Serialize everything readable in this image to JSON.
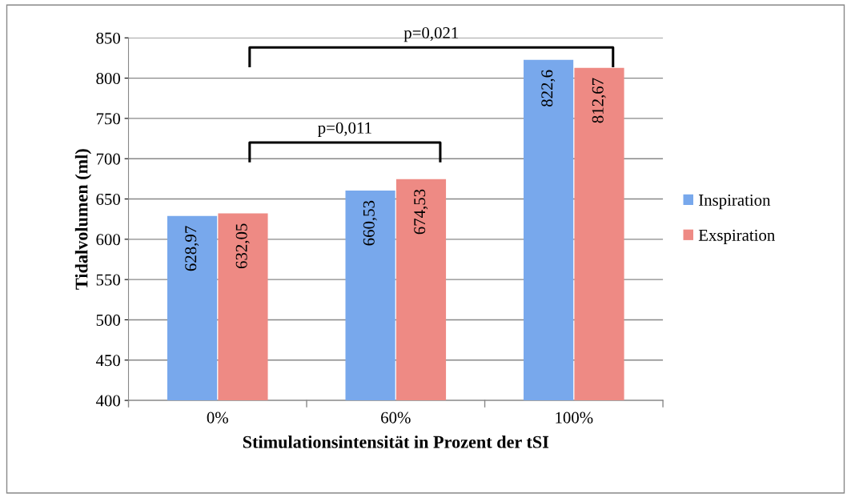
{
  "chart_data": {
    "type": "bar",
    "xlabel": "Stimulationsintensität in Prozent der tSI",
    "ylabel": "Tidalvolumen (ml)",
    "categories": [
      "0%",
      "60%",
      "100%"
    ],
    "series": [
      {
        "name": "Inspiration",
        "color": "#78a8ec",
        "values": [
          628.97,
          660.53,
          822.6
        ]
      },
      {
        "name": "Exspiration",
        "color": "#ee8a84",
        "values": [
          632.05,
          674.53,
          812.67
        ]
      }
    ],
    "value_labels": [
      [
        "628,97",
        "660,53",
        "822,6"
      ],
      [
        "632,05",
        "674,53",
        "812,67"
      ]
    ],
    "ylim": [
      400,
      850
    ],
    "yticks": [
      400,
      450,
      500,
      550,
      600,
      650,
      700,
      750,
      800,
      850
    ],
    "grid": "y",
    "legend": "right",
    "annotations": [
      "p=0,011",
      "p=0,021"
    ]
  }
}
